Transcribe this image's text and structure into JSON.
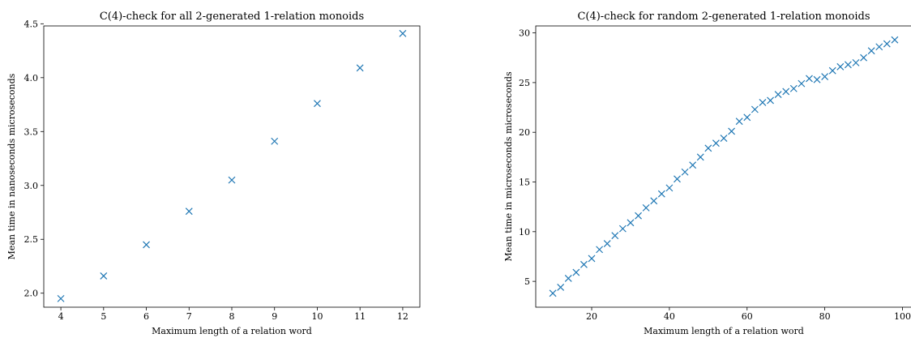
{
  "chart_data": [
    {
      "type": "scatter",
      "title": "C(4)-check for all 2-generated 1-relation monoids",
      "xlabel": "Maximum length of a relation word",
      "ylabel": "Mean time in nanoseconds microseconds",
      "xlim": [
        3.6,
        12.4
      ],
      "ylim": [
        1.87,
        4.48
      ],
      "xticks": [
        4,
        5,
        6,
        7,
        8,
        9,
        10,
        11,
        12
      ],
      "yticks": [
        2.0,
        2.5,
        3.0,
        3.5,
        4.0,
        4.5
      ],
      "ytick_labels": [
        "2.0",
        "2.5",
        "3.0",
        "3.5",
        "4.0",
        "4.5"
      ],
      "marker": "x",
      "color": "#1f77b4",
      "grid": false,
      "x": [
        4,
        5,
        6,
        7,
        8,
        9,
        10,
        11,
        12
      ],
      "y": [
        1.95,
        2.16,
        2.45,
        2.76,
        3.05,
        3.41,
        3.76,
        4.09,
        4.41
      ]
    },
    {
      "type": "scatter",
      "title": "C(4)-check for random 2-generated 1-relation monoids",
      "xlabel": "Maximum length of a relation word",
      "ylabel": "Mean time in microseconds microseconds",
      "xlim": [
        5.6,
        102.4
      ],
      "ylim": [
        2.4,
        30.7
      ],
      "xticks": [
        20,
        40,
        60,
        80,
        100
      ],
      "yticks": [
        5,
        10,
        15,
        20,
        25,
        30
      ],
      "ytick_labels": [
        "5",
        "10",
        "15",
        "20",
        "25",
        "30"
      ],
      "marker": "x",
      "color": "#1f77b4",
      "grid": false,
      "x": [
        10,
        12,
        14,
        16,
        18,
        20,
        22,
        24,
        26,
        28,
        30,
        32,
        34,
        36,
        38,
        40,
        42,
        44,
        46,
        48,
        50,
        52,
        54,
        56,
        58,
        60,
        62,
        64,
        66,
        68,
        70,
        72,
        74,
        76,
        78,
        80,
        82,
        84,
        86,
        88,
        90,
        92,
        94,
        96,
        98
      ],
      "y": [
        3.8,
        4.4,
        5.3,
        5.9,
        6.7,
        7.3,
        8.2,
        8.8,
        9.6,
        10.3,
        10.9,
        11.6,
        12.4,
        13.1,
        13.8,
        14.4,
        15.3,
        16.0,
        16.7,
        17.5,
        18.4,
        18.9,
        19.4,
        20.1,
        21.1,
        21.5,
        22.3,
        23.0,
        23.2,
        23.8,
        24.1,
        24.4,
        24.9,
        25.4,
        25.3,
        25.6,
        26.2,
        26.6,
        26.8,
        27.0,
        27.5,
        28.2,
        28.6,
        28.9,
        29.3
      ]
    }
  ]
}
